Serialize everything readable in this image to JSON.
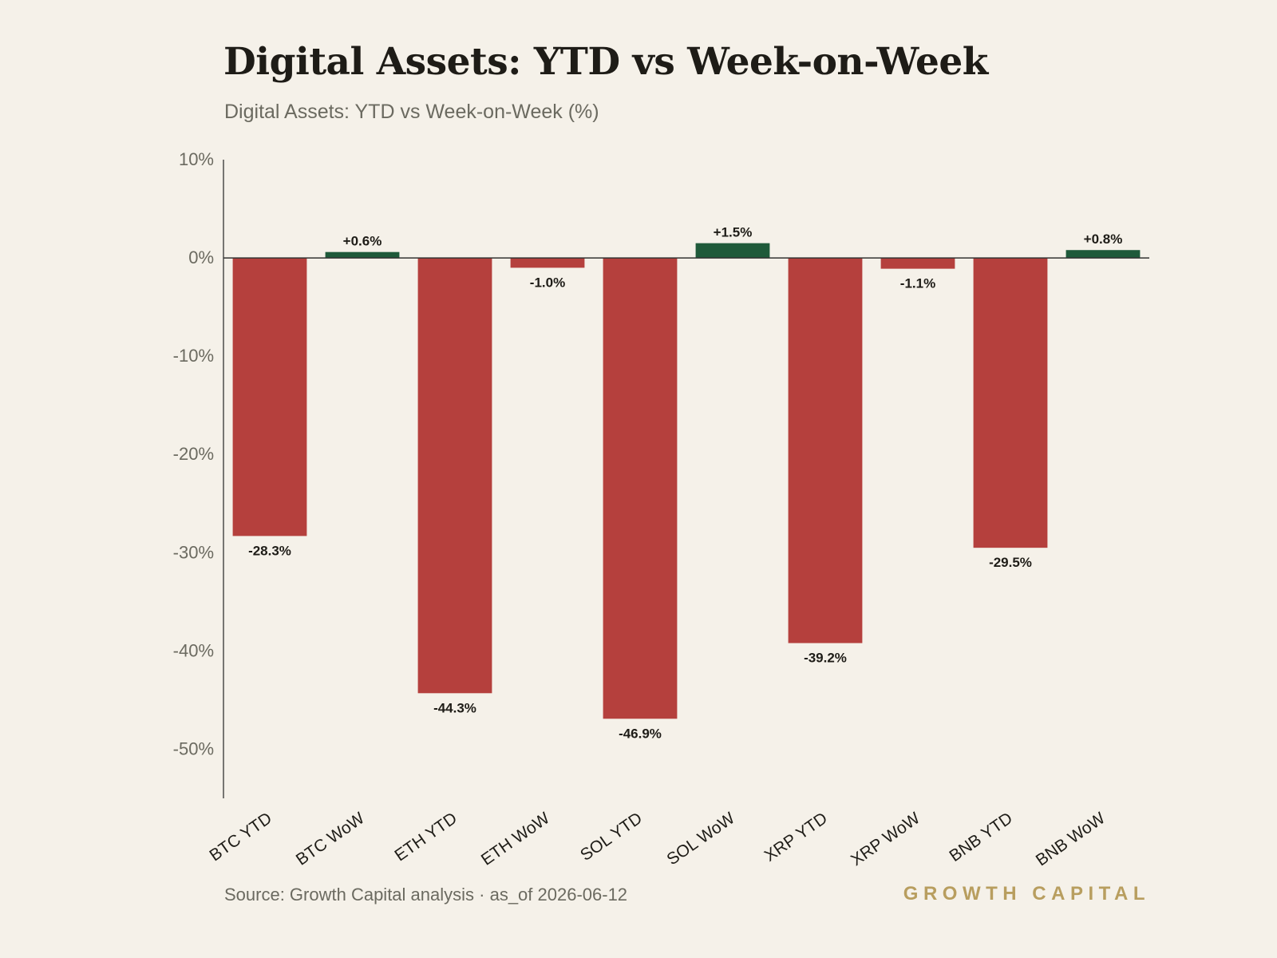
{
  "title": "Digital Assets: YTD vs Week-on-Week",
  "subtitle": "Digital Assets: YTD vs Week-on-Week (%)",
  "source": "Source: Growth Capital analysis · as_of 2026-06-12",
  "brand": "GROWTH CAPITAL",
  "colors": {
    "negative": "#b5403d",
    "positive": "#1f5a3a",
    "axis": "#333333",
    "tick_text": "#6b6a60",
    "background": "#f5f1e9"
  },
  "chart_data": {
    "type": "bar",
    "categories": [
      "BTC YTD",
      "BTC WoW",
      "ETH YTD",
      "ETH WoW",
      "SOL YTD",
      "SOL WoW",
      "XRP YTD",
      "XRP WoW",
      "BNB YTD",
      "BNB WoW"
    ],
    "values": [
      -28.3,
      0.6,
      -44.3,
      -1.0,
      -46.9,
      1.5,
      -39.2,
      -1.1,
      -29.5,
      0.8
    ],
    "data_labels": [
      "-28.3%",
      "+0.6%",
      "-44.3%",
      "-1.0%",
      "-46.9%",
      "+1.5%",
      "-39.2%",
      "-1.1%",
      "-29.5%",
      "+0.8%"
    ],
    "ylim": [
      -55,
      10
    ],
    "yticks": [
      10,
      0,
      -10,
      -20,
      -30,
      -40,
      -50
    ],
    "ytick_labels": [
      "10%",
      "0%",
      "-10%",
      "-20%",
      "-30%",
      "-40%",
      "-50%"
    ],
    "xlabel": "",
    "ylabel": "",
    "grid": false,
    "legend": false
  }
}
